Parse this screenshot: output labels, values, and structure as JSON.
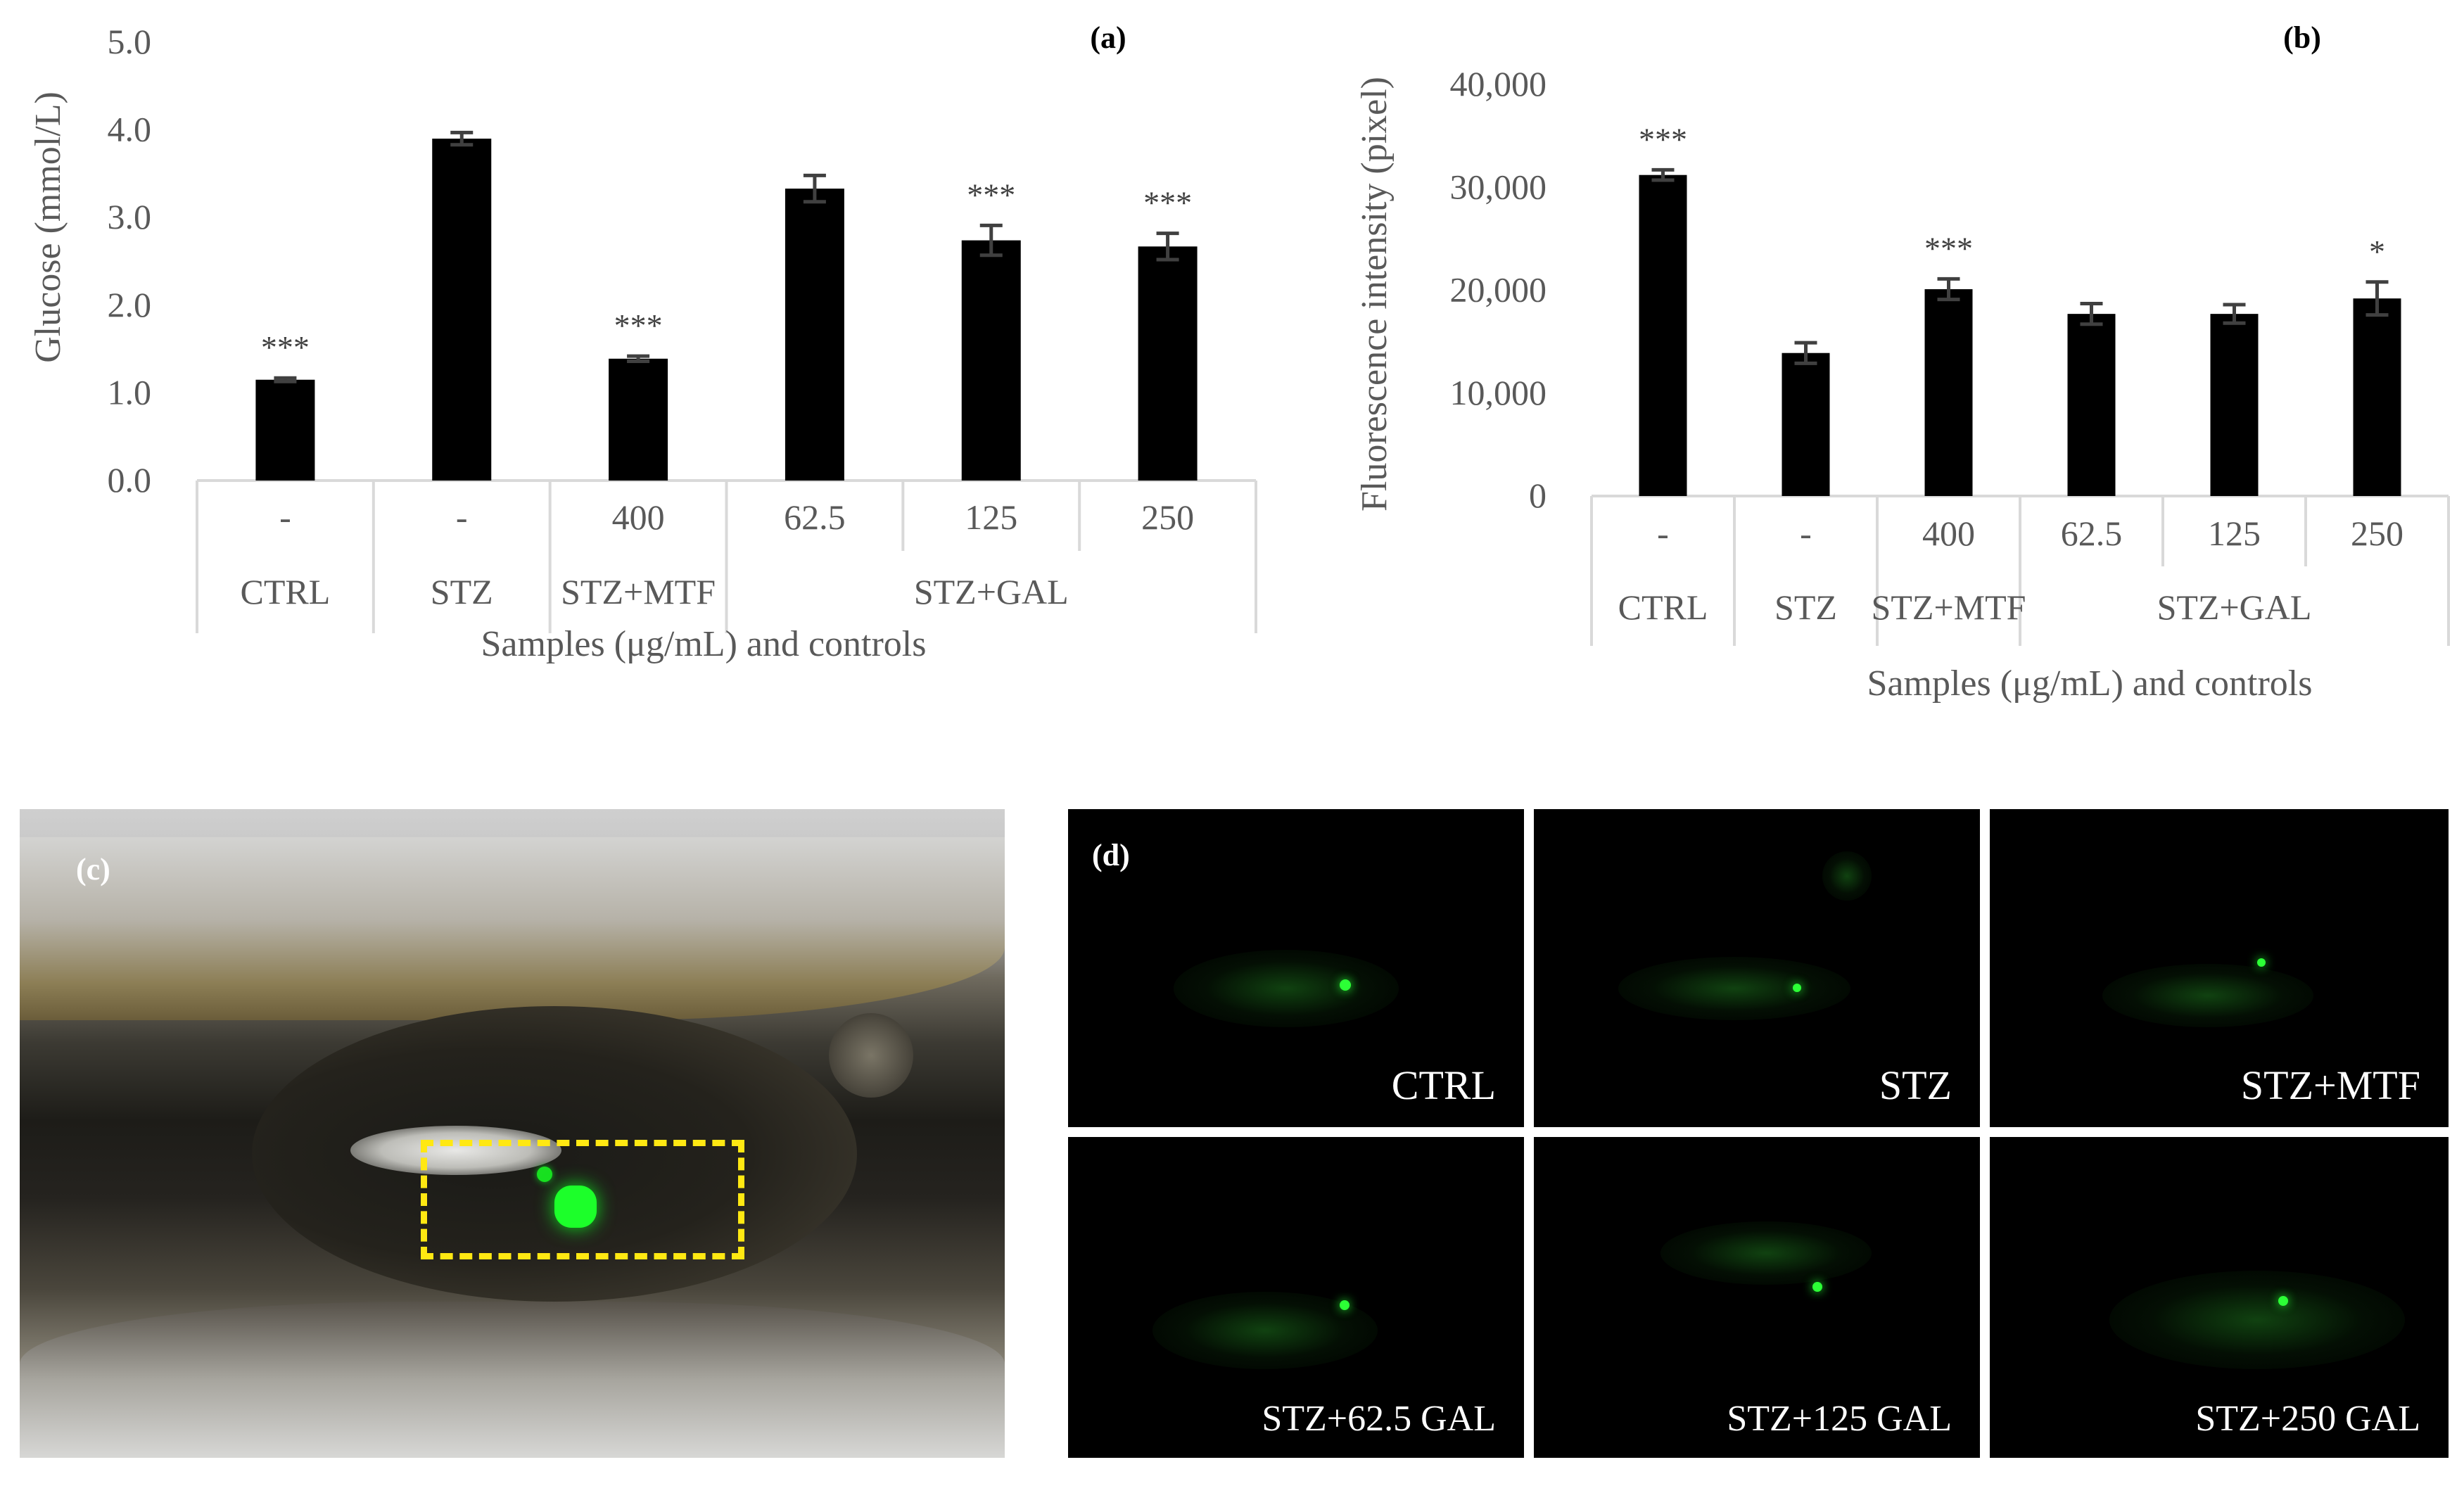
{
  "chart_data": [
    {
      "panel": "(a)",
      "type": "bar",
      "ylabel": "Glucose (mmol/L)",
      "xlabel": "Samples (μg/mL) and controls",
      "yticks": [
        "0.0",
        "1.0",
        "2.0",
        "3.0",
        "4.0",
        "5.0"
      ],
      "ylim": [
        0,
        5
      ],
      "concentrations": [
        "-",
        "-",
        "400",
        "62.5",
        "125",
        "250"
      ],
      "groups": [
        {
          "label": "CTRL",
          "span": 1
        },
        {
          "label": "STZ",
          "span": 1
        },
        {
          "label": "STZ+MTF",
          "span": 1
        },
        {
          "label": "STZ+GAL",
          "span": 3
        }
      ],
      "values": [
        1.15,
        3.9,
        1.39,
        3.33,
        2.74,
        2.67
      ],
      "errors": [
        0.02,
        0.07,
        0.03,
        0.15,
        0.17,
        0.15
      ],
      "significance": [
        "***",
        "",
        "***",
        "",
        "***",
        "***"
      ]
    },
    {
      "panel": "(b)",
      "type": "bar",
      "ylabel": "Fluorescence intensity (pixel)",
      "xlabel": "Samples (μg/mL) and controls",
      "yticks": [
        "0",
        "10,000",
        "20,000",
        "30,000",
        "40,000"
      ],
      "ylim": [
        0,
        40000
      ],
      "concentrations": [
        "-",
        "-",
        "400",
        "62.5",
        "125",
        "250"
      ],
      "groups": [
        {
          "label": "CTRL",
          "span": 1
        },
        {
          "label": "STZ",
          "span": 1
        },
        {
          "label": "STZ+MTF",
          "span": 1
        },
        {
          "label": "STZ+GAL",
          "span": 3
        }
      ],
      "values": [
        31200,
        13900,
        20100,
        17700,
        17700,
        19200
      ],
      "errors": [
        500,
        1000,
        1000,
        1000,
        900,
        1600
      ],
      "significance": [
        "***",
        "",
        "***",
        "",
        "",
        "*"
      ]
    }
  ],
  "panel_c": {
    "label": "(c)"
  },
  "panel_d": {
    "label": "(d)",
    "captions": [
      "CTRL",
      "STZ",
      "STZ+MTF",
      "STZ+62.5 GAL",
      "STZ+125 GAL",
      "STZ+250 GAL"
    ]
  }
}
